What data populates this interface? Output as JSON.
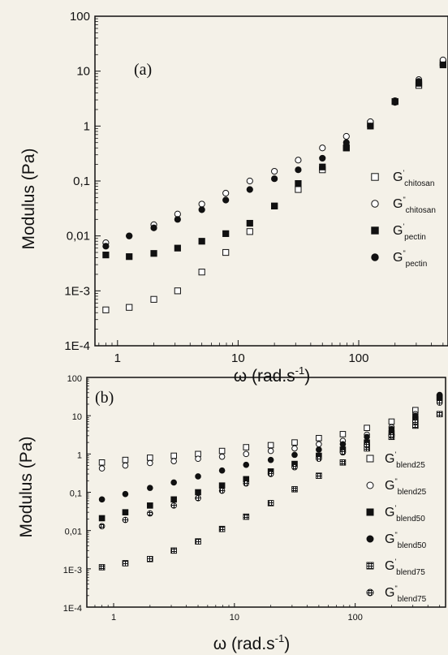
{
  "chart_data": [
    {
      "type": "scatter",
      "panel_label": "(a)",
      "xlabel": "ω (rad.s",
      "xlabel_sup": "-1",
      "xlabel_close": ")",
      "ylabel": "Modulus (Pa)",
      "x_scale": "log",
      "y_scale": "log",
      "xlim": [
        0.65,
        550
      ],
      "ylim": [
        0.0001,
        100
      ],
      "x_ticks": [
        {
          "value": 1,
          "label": "1"
        },
        {
          "value": 10,
          "label": "10"
        },
        {
          "value": 100,
          "label": "100"
        }
      ],
      "y_ticks": [
        {
          "value": 100,
          "label": "100"
        },
        {
          "value": 10,
          "label": "10"
        },
        {
          "value": 1,
          "label": "1"
        },
        {
          "value": 0.1,
          "label": "0,1"
        },
        {
          "value": 0.01,
          "label": "0,01"
        },
        {
          "value": 0.001,
          "label": "1E-3"
        },
        {
          "value": 0.0001,
          "label": "1E-4"
        }
      ],
      "legend_position": "right",
      "series": [
        {
          "name": "G",
          "prime": "'",
          "sub": "chitosan",
          "marker": "open-square",
          "x": [
            0.8,
            1.25,
            2,
            3.15,
            5,
            7.9,
            12.5,
            20,
            31.5,
            50,
            79,
            125,
            200,
            315,
            500
          ],
          "y": [
            0.00045,
            0.0005,
            0.0007,
            0.001,
            0.0022,
            0.005,
            0.012,
            0.035,
            0.07,
            0.16,
            0.4,
            1.1,
            2.8,
            5.5,
            14
          ]
        },
        {
          "name": "G",
          "prime": "\"",
          "sub": "chitosan",
          "marker": "open-circle",
          "x": [
            0.8,
            1.25,
            2,
            3.15,
            5,
            7.9,
            12.5,
            20,
            31.5,
            50,
            79,
            125,
            200,
            315,
            500
          ],
          "y": [
            0.0075,
            0.01,
            0.016,
            0.025,
            0.038,
            0.06,
            0.1,
            0.15,
            0.24,
            0.4,
            0.65,
            1.2,
            2.9,
            7,
            16
          ]
        },
        {
          "name": "G",
          "prime": "'",
          "sub": "pectin",
          "marker": "filled-square",
          "x": [
            0.8,
            1.25,
            2,
            3.15,
            5,
            7.9,
            12.5,
            20,
            31.5,
            50,
            79,
            125,
            200,
            315,
            500
          ],
          "y": [
            0.0045,
            0.0042,
            0.0048,
            0.006,
            0.008,
            0.011,
            0.017,
            0.035,
            0.09,
            0.18,
            0.4,
            1.0,
            2.8,
            6,
            13
          ]
        },
        {
          "name": "G",
          "prime": "\"",
          "sub": "pectin",
          "marker": "filled-circle",
          "x": [
            0.8,
            1.25,
            2,
            3.15,
            5,
            7.9,
            12.5,
            20,
            31.5,
            50,
            79,
            125,
            200,
            315,
            500
          ],
          "y": [
            0.0065,
            0.01,
            0.014,
            0.02,
            0.03,
            0.045,
            0.07,
            0.11,
            0.16,
            0.26,
            0.5,
            1.0,
            2.7,
            6.5,
            13
          ]
        }
      ]
    },
    {
      "type": "scatter",
      "panel_label": "(b)",
      "xlabel": "ω (rad.s",
      "xlabel_sup": "-1",
      "xlabel_close": ")",
      "ylabel": "Modulus (Pa)",
      "x_scale": "log",
      "y_scale": "log",
      "xlim": [
        0.6,
        560
      ],
      "ylim": [
        0.0001,
        100
      ],
      "x_ticks": [
        {
          "value": 1,
          "label": "1"
        },
        {
          "value": 10,
          "label": "10"
        },
        {
          "value": 100,
          "label": "100"
        }
      ],
      "y_ticks": [
        {
          "value": 100,
          "label": "100"
        },
        {
          "value": 10,
          "label": "10"
        },
        {
          "value": 1,
          "label": "1"
        },
        {
          "value": 0.1,
          "label": "0,1"
        },
        {
          "value": 0.01,
          "label": "0,01"
        },
        {
          "value": 0.001,
          "label": "1E-3"
        },
        {
          "value": 0.0001,
          "label": "1E-4"
        }
      ],
      "legend_position": "right",
      "series": [
        {
          "name": "G",
          "prime": "'",
          "sub": "blend25",
          "marker": "open-square",
          "x": [
            0.8,
            1.25,
            2,
            3.15,
            5,
            7.9,
            12.5,
            20,
            31.5,
            50,
            79,
            125,
            200,
            315,
            500
          ],
          "y": [
            0.6,
            0.7,
            0.8,
            0.9,
            1.0,
            1.2,
            1.5,
            1.7,
            2.0,
            2.6,
            3.3,
            4.8,
            7,
            14,
            30
          ]
        },
        {
          "name": "G",
          "prime": "\"",
          "sub": "blend25",
          "marker": "open-circle",
          "x": [
            0.8,
            1.25,
            2,
            3.15,
            5,
            7.9,
            12.5,
            20,
            31.5,
            50,
            79,
            125,
            200,
            315,
            500
          ],
          "y": [
            0.42,
            0.5,
            0.58,
            0.65,
            0.75,
            0.85,
            1.0,
            1.2,
            1.4,
            1.8,
            2.2,
            3.2,
            5,
            11,
            25
          ]
        },
        {
          "name": "G",
          "prime": "'",
          "sub": "blend50",
          "marker": "filled-square",
          "x": [
            0.8,
            1.25,
            2,
            3.15,
            5,
            7.9,
            12.5,
            20,
            31.5,
            50,
            79,
            125,
            200,
            315,
            500
          ],
          "y": [
            0.021,
            0.03,
            0.045,
            0.065,
            0.1,
            0.15,
            0.22,
            0.35,
            0.55,
            0.9,
            1.3,
            2.0,
            3.5,
            8,
            30
          ]
        },
        {
          "name": "G",
          "prime": "\"",
          "sub": "blend50",
          "marker": "filled-circle",
          "x": [
            0.8,
            1.25,
            2,
            3.15,
            5,
            7.9,
            12.5,
            20,
            31.5,
            50,
            79,
            125,
            200,
            315,
            500
          ],
          "y": [
            0.065,
            0.09,
            0.13,
            0.18,
            0.26,
            0.37,
            0.52,
            0.7,
            0.95,
            1.3,
            1.8,
            2.8,
            4.5,
            10,
            35
          ]
        },
        {
          "name": "G",
          "prime": "'",
          "sub": "blend75",
          "marker": "hatched-square",
          "x": [
            0.8,
            1.25,
            2,
            3.15,
            5,
            7.9,
            12.5,
            20,
            31.5,
            50,
            79,
            125,
            200,
            315,
            500
          ],
          "y": [
            0.0011,
            0.0014,
            0.0018,
            0.003,
            0.0052,
            0.011,
            0.023,
            0.052,
            0.12,
            0.27,
            0.6,
            1.4,
            2.8,
            5.5,
            11
          ]
        },
        {
          "name": "G",
          "prime": "\"",
          "sub": "blend75",
          "marker": "hatched-circle",
          "x": [
            0.8,
            1.25,
            2,
            3.15,
            5,
            7.9,
            12.5,
            20,
            31.5,
            50,
            79,
            125,
            200,
            315,
            500
          ],
          "y": [
            0.013,
            0.019,
            0.028,
            0.045,
            0.07,
            0.11,
            0.17,
            0.3,
            0.45,
            0.75,
            1.1,
            1.7,
            3,
            7,
            22
          ]
        }
      ]
    }
  ]
}
